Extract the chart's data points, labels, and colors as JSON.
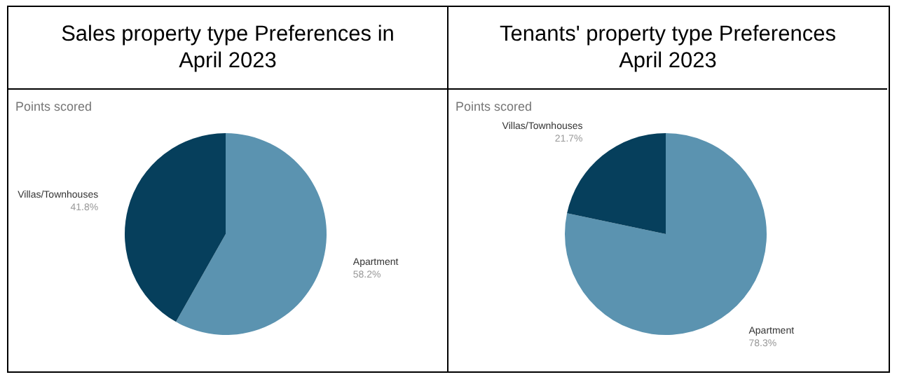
{
  "chart_data": [
    {
      "type": "pie",
      "title": "Sales property type Preferences in April 2023",
      "subtitle": "Points scored",
      "categories": [
        "Apartment",
        "Villas/Townhouses"
      ],
      "values": [
        58.2,
        41.8
      ],
      "value_labels": [
        "58.2%",
        "41.8%"
      ],
      "colors": [
        "#5b93b0",
        "#063f5c"
      ]
    },
    {
      "type": "pie",
      "title": "Tenants' property type Preferences April 2023",
      "subtitle": "Points scored",
      "categories": [
        "Apartment",
        "Villas/Townhouses"
      ],
      "values": [
        78.3,
        21.7
      ],
      "value_labels": [
        "78.3%",
        "21.7%"
      ],
      "colors": [
        "#5b93b0",
        "#063f5c"
      ]
    }
  ]
}
